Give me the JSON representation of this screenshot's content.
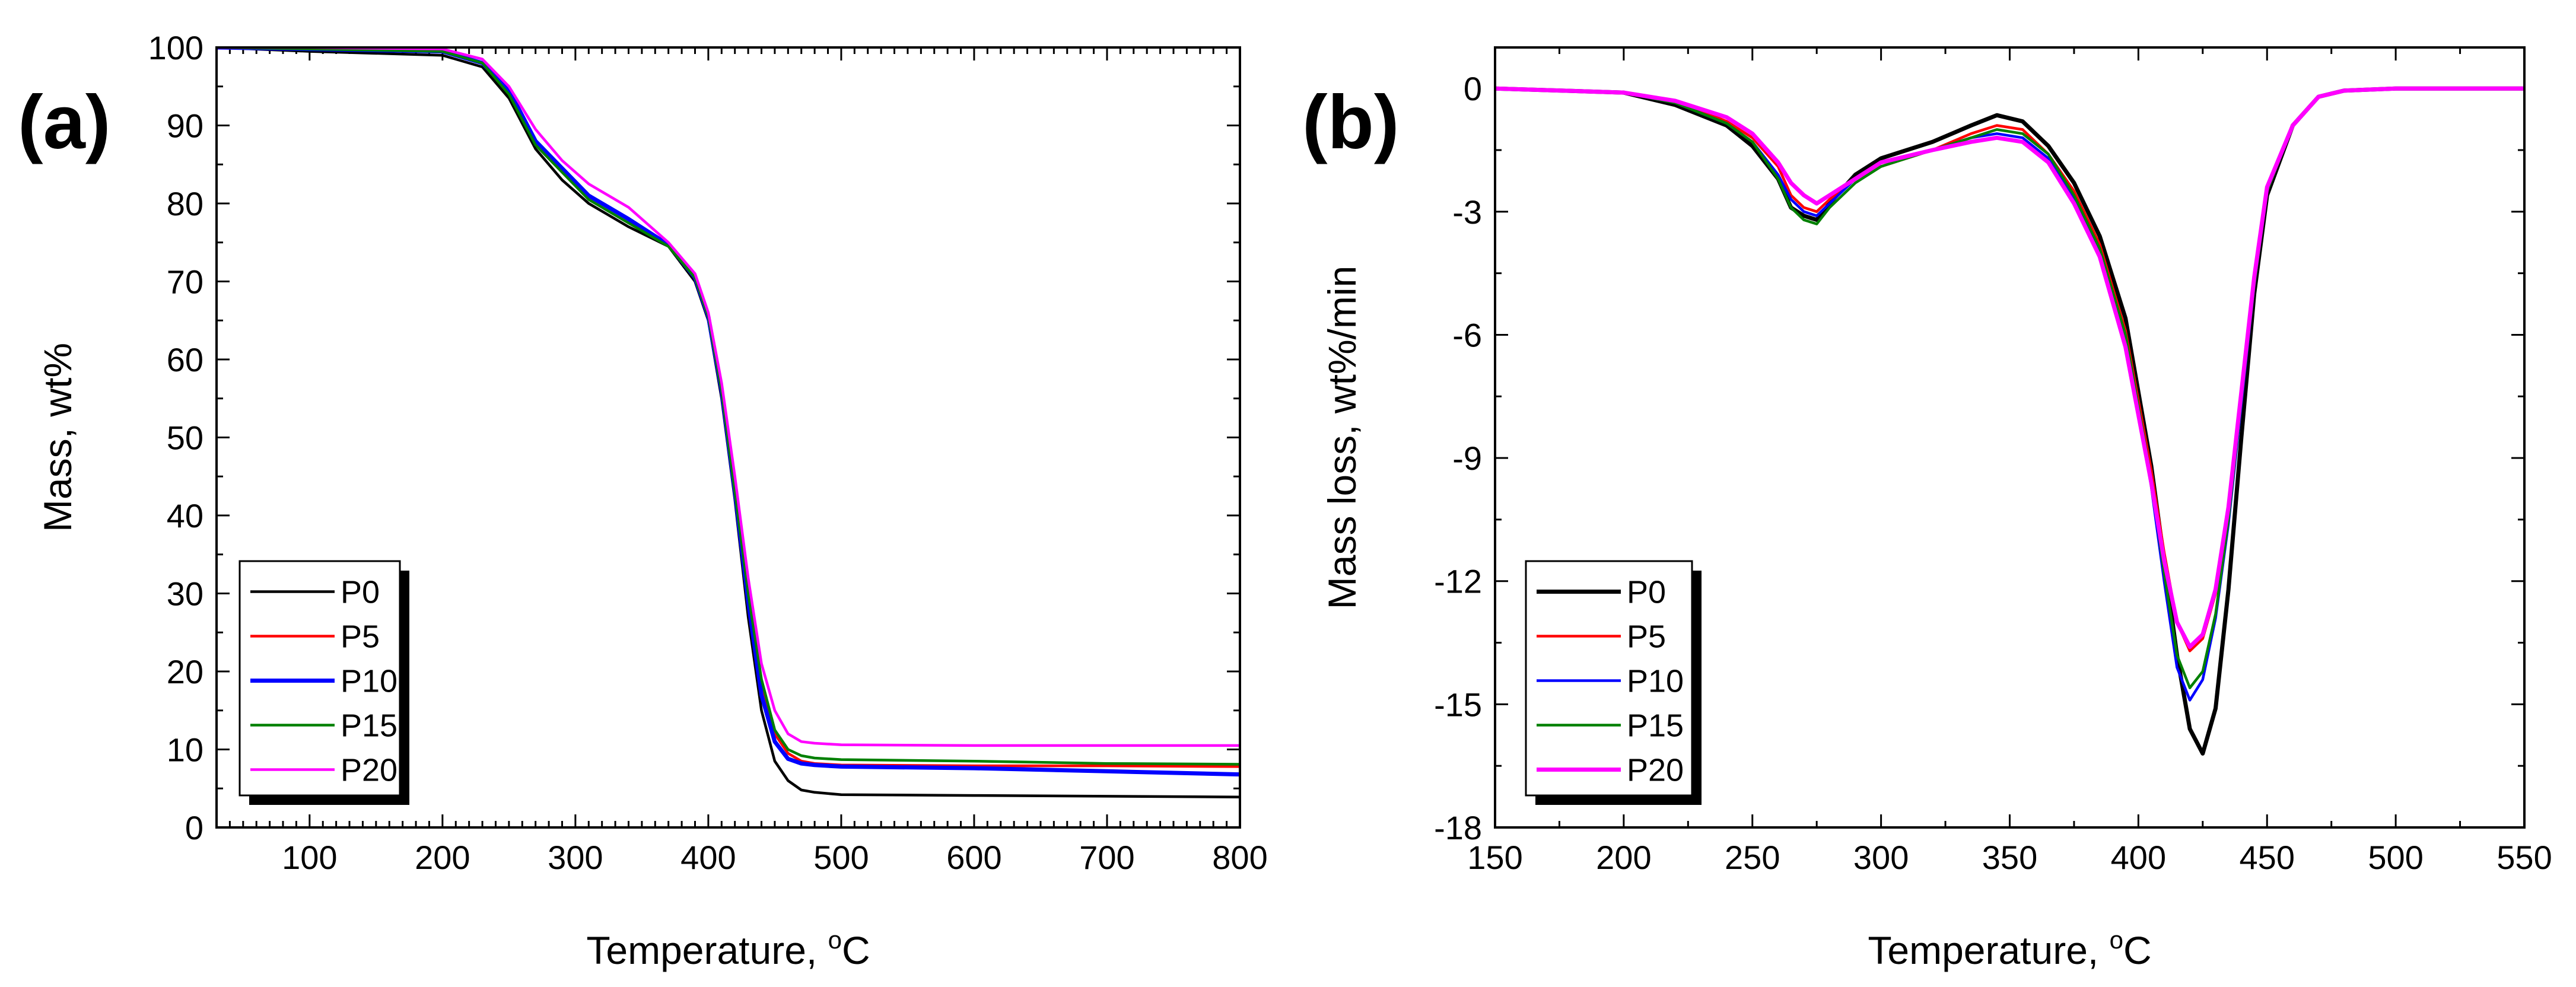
{
  "chart_data": [
    {
      "type": "line",
      "panel_label": "(a)",
      "title": "",
      "xlabel": "Temperature, °C",
      "xlabel_parts": {
        "text": "Temperature, ",
        "sup": "o",
        "unit": "C"
      },
      "ylabel": "Mass, wt%",
      "xlim": [
        30,
        800
      ],
      "ylim": [
        0,
        100
      ],
      "xticks": [
        100,
        200,
        300,
        400,
        500,
        600,
        700,
        800
      ],
      "yticks": [
        0,
        10,
        20,
        30,
        40,
        50,
        60,
        70,
        80,
        90,
        100
      ],
      "grid": false,
      "legend": {
        "position": "bottom-left",
        "entries": [
          "P0",
          "P5",
          "P10",
          "P15",
          "P20"
        ]
      },
      "series": [
        {
          "name": "P0",
          "color": "#000000",
          "x": [
            30,
            100,
            200,
            230,
            250,
            270,
            290,
            310,
            340,
            370,
            390,
            400,
            410,
            420,
            430,
            440,
            450,
            460,
            470,
            480,
            500,
            600,
            700,
            800
          ],
          "y": [
            100,
            99.5,
            99,
            97.5,
            93.5,
            87,
            83,
            80,
            77,
            74.5,
            70,
            65,
            55,
            42,
            27,
            15,
            8.5,
            6,
            4.8,
            4.5,
            4.2,
            4.1,
            4,
            3.9
          ]
        },
        {
          "name": "P5",
          "color": "#ff0000",
          "x": [
            30,
            100,
            200,
            230,
            250,
            270,
            290,
            310,
            340,
            370,
            390,
            400,
            410,
            420,
            430,
            440,
            450,
            460,
            470,
            480,
            500,
            600,
            700,
            800
          ],
          "y": [
            100,
            99.8,
            99.5,
            98,
            94.5,
            88,
            84.5,
            81,
            78,
            74.7,
            70.5,
            65.5,
            56,
            43,
            29,
            18,
            12,
            9.5,
            8.5,
            8.2,
            8,
            7.9,
            7.9,
            7.8
          ]
        },
        {
          "name": "P10",
          "color": "#0000ff",
          "x": [
            30,
            100,
            200,
            230,
            250,
            270,
            290,
            310,
            340,
            370,
            390,
            400,
            410,
            420,
            430,
            440,
            450,
            460,
            470,
            480,
            500,
            600,
            700,
            800
          ],
          "y": [
            100,
            99.8,
            99.5,
            98,
            94.5,
            88,
            84.5,
            81,
            78,
            74.7,
            70.5,
            65.5,
            56,
            43,
            29,
            17,
            11,
            8.8,
            8.2,
            8,
            7.8,
            7.6,
            7.2,
            6.8
          ]
        },
        {
          "name": "P15",
          "color": "#008000",
          "x": [
            30,
            100,
            200,
            230,
            250,
            270,
            290,
            310,
            340,
            370,
            390,
            400,
            410,
            420,
            430,
            440,
            450,
            460,
            470,
            480,
            500,
            600,
            700,
            800
          ],
          "y": [
            100,
            99.8,
            99.5,
            98,
            94,
            87.5,
            84,
            80.5,
            77.5,
            74.5,
            70.5,
            65.5,
            56,
            43,
            30,
            19,
            12.5,
            10,
            9.2,
            8.9,
            8.7,
            8.5,
            8.2,
            8.1
          ]
        },
        {
          "name": "P20",
          "color": "#ff00ff",
          "x": [
            30,
            100,
            200,
            230,
            250,
            270,
            290,
            310,
            340,
            370,
            390,
            400,
            410,
            420,
            430,
            440,
            450,
            460,
            470,
            480,
            500,
            600,
            700,
            800
          ],
          "y": [
            100,
            100,
            99.8,
            98.5,
            95,
            89.5,
            85.5,
            82.5,
            79.5,
            75,
            71,
            66,
            57,
            45,
            32,
            21,
            15,
            12,
            11,
            10.8,
            10.6,
            10.5,
            10.5,
            10.5
          ]
        }
      ]
    },
    {
      "type": "line",
      "panel_label": "(b)",
      "title": "",
      "xlabel": "Temperature, °C",
      "xlabel_parts": {
        "text": "Temperature, ",
        "sup": "o",
        "unit": "C"
      },
      "ylabel": "Mass loss, wt%/min",
      "xlim": [
        150,
        550
      ],
      "ylim": [
        -18,
        1
      ],
      "xticks": [
        150,
        200,
        250,
        300,
        350,
        400,
        450,
        500,
        550
      ],
      "yticks": [
        0,
        -3,
        -6,
        -9,
        -12,
        -15,
        -18
      ],
      "grid": false,
      "legend": {
        "position": "bottom-left",
        "entries": [
          "P0",
          "P5",
          "P10",
          "P15",
          "P20"
        ]
      },
      "series": [
        {
          "name": "P0",
          "color": "#000000",
          "x": [
            150,
            200,
            220,
            240,
            250,
            260,
            265,
            270,
            275,
            280,
            290,
            300,
            320,
            335,
            345,
            355,
            365,
            375,
            385,
            395,
            405,
            410,
            415,
            420,
            425,
            430,
            435,
            440,
            445,
            450,
            460,
            470,
            480,
            500,
            550
          ],
          "y": [
            0,
            -0.1,
            -0.4,
            -0.9,
            -1.4,
            -2.2,
            -2.9,
            -3.1,
            -3.2,
            -2.8,
            -2.1,
            -1.7,
            -1.3,
            -0.9,
            -0.65,
            -0.8,
            -1.4,
            -2.3,
            -3.6,
            -5.6,
            -9.2,
            -11.5,
            -13.8,
            -15.6,
            -16.2,
            -15.1,
            -12.2,
            -8.5,
            -5,
            -2.6,
            -0.9,
            -0.2,
            -0.05,
            0,
            0
          ]
        },
        {
          "name": "P5",
          "color": "#ff0000",
          "x": [
            150,
            200,
            220,
            240,
            250,
            260,
            265,
            270,
            275,
            280,
            290,
            300,
            320,
            335,
            345,
            355,
            365,
            375,
            385,
            395,
            405,
            410,
            415,
            420,
            425,
            430,
            435,
            440,
            445,
            450,
            460,
            470,
            480,
            500,
            550
          ],
          "y": [
            0,
            -0.1,
            -0.3,
            -0.8,
            -1.2,
            -1.9,
            -2.6,
            -2.9,
            -3,
            -2.7,
            -2.2,
            -1.9,
            -1.5,
            -1.1,
            -0.9,
            -1,
            -1.6,
            -2.5,
            -3.8,
            -5.9,
            -9.3,
            -11.3,
            -13,
            -13.7,
            -13.4,
            -12.3,
            -10.3,
            -7.5,
            -4.7,
            -2.5,
            -0.9,
            -0.2,
            -0.05,
            0,
            0
          ]
        },
        {
          "name": "P10",
          "color": "#0000ff",
          "x": [
            150,
            200,
            220,
            240,
            250,
            260,
            265,
            270,
            275,
            280,
            290,
            300,
            320,
            335,
            345,
            355,
            365,
            375,
            385,
            395,
            405,
            410,
            415,
            420,
            425,
            430,
            435,
            440,
            445,
            450,
            460,
            470,
            480,
            500,
            550
          ],
          "y": [
            0,
            -0.1,
            -0.35,
            -0.85,
            -1.3,
            -2.1,
            -2.7,
            -3,
            -3.1,
            -2.8,
            -2.2,
            -1.8,
            -1.5,
            -1.2,
            -1.1,
            -1.2,
            -1.7,
            -2.7,
            -4,
            -6.1,
            -9.7,
            -12,
            -14.1,
            -14.9,
            -14.4,
            -12.9,
            -10.6,
            -7.7,
            -4.8,
            -2.5,
            -0.9,
            -0.2,
            -0.05,
            0,
            0
          ]
        },
        {
          "name": "P15",
          "color": "#008000",
          "x": [
            150,
            200,
            220,
            240,
            250,
            260,
            265,
            270,
            275,
            280,
            290,
            300,
            320,
            335,
            345,
            355,
            365,
            375,
            385,
            395,
            405,
            410,
            415,
            420,
            425,
            430,
            435,
            440,
            445,
            450,
            460,
            470,
            480,
            500,
            550
          ],
          "y": [
            0,
            -0.1,
            -0.35,
            -0.85,
            -1.3,
            -2.2,
            -2.9,
            -3.2,
            -3.3,
            -2.9,
            -2.3,
            -1.9,
            -1.5,
            -1.2,
            -1,
            -1.1,
            -1.6,
            -2.6,
            -3.9,
            -6,
            -9.5,
            -11.8,
            -13.8,
            -14.6,
            -14.2,
            -12.8,
            -10.5,
            -7.6,
            -4.8,
            -2.5,
            -0.9,
            -0.2,
            -0.05,
            0,
            0
          ]
        },
        {
          "name": "P20",
          "color": "#ff00ff",
          "x": [
            150,
            200,
            220,
            240,
            250,
            260,
            265,
            270,
            275,
            280,
            290,
            300,
            320,
            335,
            345,
            355,
            365,
            375,
            385,
            395,
            405,
            410,
            415,
            420,
            425,
            430,
            435,
            440,
            445,
            450,
            460,
            470,
            480,
            500,
            550
          ],
          "y": [
            0,
            -0.1,
            -0.3,
            -0.7,
            -1.1,
            -1.8,
            -2.3,
            -2.6,
            -2.8,
            -2.6,
            -2.2,
            -1.8,
            -1.5,
            -1.3,
            -1.2,
            -1.3,
            -1.8,
            -2.8,
            -4.1,
            -6.3,
            -9.6,
            -11.5,
            -13,
            -13.6,
            -13.3,
            -12.2,
            -10.2,
            -7.4,
            -4.6,
            -2.4,
            -0.9,
            -0.2,
            -0.05,
            0,
            0
          ]
        }
      ]
    }
  ]
}
